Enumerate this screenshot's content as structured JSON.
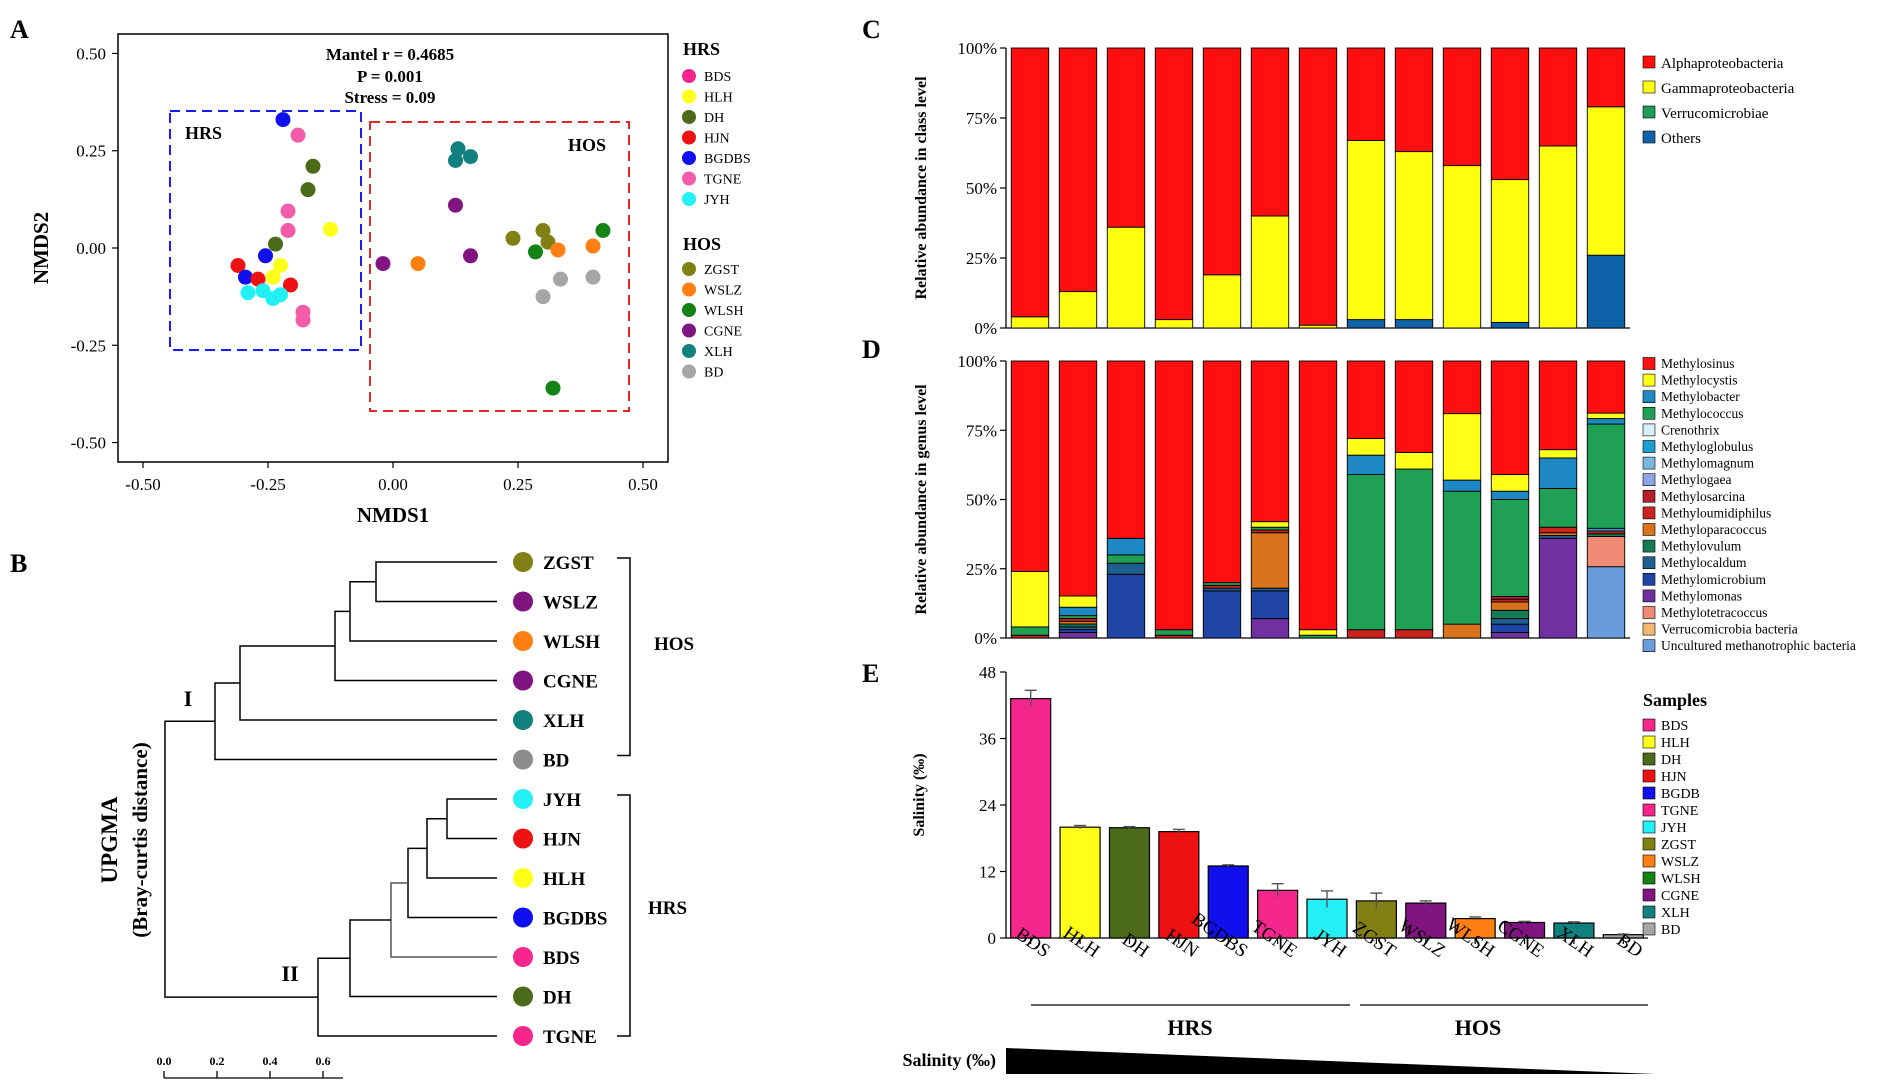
{
  "chart_data": [
    {
      "panel": "A",
      "type": "scatter",
      "xlabel": "NMDS1",
      "ylabel": "NMDS2",
      "xlim": [
        -0.55,
        0.55
      ],
      "ylim": [
        -0.55,
        0.55
      ],
      "xticks": [
        "-0.50",
        "-0.25",
        "0.00",
        "0.25",
        "0.50"
      ],
      "yticks": [
        "0.50",
        "0.25",
        "0.00",
        "-0.25",
        "-0.50"
      ],
      "annotation": [
        "Mantel r = 0.4685",
        "P = 0.001",
        "Stress = 0.09"
      ],
      "box_labels": {
        "hrs": "HRS",
        "hos": "HOS"
      },
      "legend": {
        "hrs_title": "HRS",
        "hos_title": "HOS",
        "hrs": [
          {
            "name": "BDS",
            "color": "#f7268c"
          },
          {
            "name": "HLH",
            "color": "#ffff1a"
          },
          {
            "name": "DH",
            "color": "#4b6b1a"
          },
          {
            "name": "HJN",
            "color": "#ee1111"
          },
          {
            "name": "BGDBS",
            "color": "#1010ee"
          },
          {
            "name": "TGNE",
            "color": "#f25ca8"
          },
          {
            "name": "JYH",
            "color": "#22f0f5"
          }
        ],
        "hos": [
          {
            "name": "ZGST",
            "color": "#808015"
          },
          {
            "name": "WSLZ",
            "color": "#ff7f12"
          },
          {
            "name": "WLSH",
            "color": "#148214"
          },
          {
            "name": "CGNE",
            "color": "#801480"
          },
          {
            "name": "XLH",
            "color": "#138080"
          },
          {
            "name": "BD",
            "color": "#a6a6a6"
          }
        ]
      },
      "points": [
        {
          "g": "BGDBS",
          "x": -0.22,
          "y": 0.33
        },
        {
          "g": "TGNE",
          "x": -0.19,
          "y": 0.29
        },
        {
          "g": "DH",
          "x": -0.16,
          "y": 0.21
        },
        {
          "g": "DH",
          "x": -0.17,
          "y": 0.15
        },
        {
          "g": "TGNE",
          "x": -0.21,
          "y": 0.095
        },
        {
          "g": "TGNE",
          "x": -0.21,
          "y": 0.045
        },
        {
          "g": "HLH",
          "x": -0.125,
          "y": 0.048
        },
        {
          "g": "DH",
          "x": -0.235,
          "y": 0.01
        },
        {
          "g": "BGDBS",
          "x": -0.255,
          "y": -0.02
        },
        {
          "g": "HJN",
          "x": -0.31,
          "y": -0.045
        },
        {
          "g": "HLH",
          "x": -0.225,
          "y": -0.045
        },
        {
          "g": "BGDBS",
          "x": -0.295,
          "y": -0.075
        },
        {
          "g": "HJN",
          "x": -0.27,
          "y": -0.08
        },
        {
          "g": "HLH",
          "x": -0.24,
          "y": -0.075
        },
        {
          "g": "HJN",
          "x": -0.205,
          "y": -0.095
        },
        {
          "g": "JYH",
          "x": -0.29,
          "y": -0.115
        },
        {
          "g": "JYH",
          "x": -0.26,
          "y": -0.11
        },
        {
          "g": "JYH",
          "x": -0.24,
          "y": -0.13
        },
        {
          "g": "JYH",
          "x": -0.225,
          "y": -0.12
        },
        {
          "g": "TGNE",
          "x": -0.18,
          "y": -0.165
        },
        {
          "g": "TGNE",
          "x": -0.18,
          "y": -0.185
        },
        {
          "g": "XLH",
          "x": 0.13,
          "y": 0.255
        },
        {
          "g": "XLH",
          "x": 0.125,
          "y": 0.225
        },
        {
          "g": "XLH",
          "x": 0.155,
          "y": 0.235
        },
        {
          "g": "CGNE",
          "x": 0.125,
          "y": 0.11
        },
        {
          "g": "CGNE",
          "x": -0.02,
          "y": -0.04
        },
        {
          "g": "WSLZ",
          "x": 0.05,
          "y": -0.04
        },
        {
          "g": "CGNE",
          "x": 0.155,
          "y": -0.02
        },
        {
          "g": "ZGST",
          "x": 0.24,
          "y": 0.025
        },
        {
          "g": "ZGST",
          "x": 0.3,
          "y": 0.045
        },
        {
          "g": "ZGST",
          "x": 0.31,
          "y": 0.015
        },
        {
          "g": "WLSH",
          "x": 0.285,
          "y": -0.01
        },
        {
          "g": "WSLZ",
          "x": 0.33,
          "y": -0.005
        },
        {
          "g": "WSLZ",
          "x": 0.4,
          "y": 0.005
        },
        {
          "g": "WLSH",
          "x": 0.42,
          "y": 0.045
        },
        {
          "g": "BD",
          "x": 0.335,
          "y": -0.08
        },
        {
          "g": "BD",
          "x": 0.4,
          "y": -0.075
        },
        {
          "g": "BD",
          "x": 0.3,
          "y": -0.125
        },
        {
          "g": "WLSH",
          "x": 0.32,
          "y": -0.36
        }
      ]
    },
    {
      "panel": "B",
      "type": "dendrogram",
      "title": "UPGMA",
      "subtitle": "(Bray-curtis distance)",
      "scale_ticks": [
        "0.0",
        "0.2",
        "0.4",
        "0.6"
      ],
      "cluster_labels": [
        "I",
        "II"
      ],
      "groups": [
        {
          "name": "HOS"
        },
        {
          "name": "HRS"
        }
      ],
      "leaves": [
        {
          "name": "ZGST",
          "color": "#808015"
        },
        {
          "name": "WSLZ",
          "color": "#801480"
        },
        {
          "name": "WLSH",
          "color": "#ff7f12"
        },
        {
          "name": "CGNE",
          "color": "#801480"
        },
        {
          "name": "XLH",
          "color": "#138080"
        },
        {
          "name": "BD",
          "color": "#8c8c8c"
        },
        {
          "name": "JYH",
          "color": "#22f0f5"
        },
        {
          "name": "HJN",
          "color": "#ee1111"
        },
        {
          "name": "HLH",
          "color": "#ffff1a"
        },
        {
          "name": "BGDBS",
          "color": "#1010ee"
        },
        {
          "name": "BDS",
          "color": "#f7268c"
        },
        {
          "name": "DH",
          "color": "#4b6b1a"
        },
        {
          "name": "TGNE",
          "color": "#f7268c"
        }
      ]
    },
    {
      "panel": "C",
      "type": "bar",
      "stacked": true,
      "ylabel": "Relative abundance in class level",
      "yticks": [
        "0%",
        "25%",
        "50%",
        "75%",
        "100%"
      ],
      "categories": [
        "BDS",
        "HLH",
        "DH",
        "HJN",
        "BGDBS",
        "TGNE",
        "JYH",
        "ZGST",
        "WSLZ",
        "WLSH",
        "CGNE",
        "XLH",
        "BD"
      ],
      "series": [
        {
          "name": "Others",
          "color": "#1062a8",
          "values": [
            0,
            0,
            0,
            0,
            0,
            0,
            0,
            3,
            3,
            0,
            2,
            0,
            26
          ]
        },
        {
          "name": "Verrucomicrobiae",
          "color": "#1f9d57",
          "values": [
            0,
            0,
            0,
            0,
            0,
            0,
            0,
            0,
            0,
            0,
            0,
            0,
            0
          ]
        },
        {
          "name": "Gammaproteobacteria",
          "color": "#ffff10",
          "values": [
            4,
            13,
            36,
            3,
            19,
            40,
            1,
            64,
            60,
            58,
            51,
            65,
            53
          ]
        },
        {
          "name": "Alphaproteobacteria",
          "color": "#ff0f0f",
          "values": [
            96,
            87,
            64,
            97,
            81,
            60,
            99,
            33,
            37,
            42,
            47,
            35,
            21
          ]
        }
      ],
      "legend_order": [
        "Alphaproteobacteria",
        "Gammaproteobacteria",
        "Verrucomicrobiae",
        "Others"
      ]
    },
    {
      "panel": "D",
      "type": "bar",
      "stacked": true,
      "ylabel": "Relative abundance in genus level",
      "yticks": [
        "0%",
        "25%",
        "50%",
        "75%",
        "100%"
      ],
      "categories": [
        "BDS",
        "HLH",
        "DH",
        "HJN",
        "BGDBS",
        "TGNE",
        "JYH",
        "ZGST",
        "WSLZ",
        "WLSH",
        "CGNE",
        "XLH",
        "BD"
      ],
      "series": [
        {
          "name": "Uncultured methanotrophic bacteria",
          "color": "#6a9cdc",
          "values": [
            0,
            0,
            0,
            0,
            0,
            0,
            0,
            0,
            0,
            0,
            0,
            0,
            26
          ]
        },
        {
          "name": "Verrucomicrobia bacteria",
          "color": "#f5b870",
          "values": [
            0,
            0,
            0,
            0,
            0,
            0,
            0,
            0,
            0,
            0,
            0,
            0,
            0
          ]
        },
        {
          "name": "Methylotetracoccus",
          "color": "#f08a75",
          "values": [
            0,
            0,
            0,
            0,
            0,
            0,
            0,
            0,
            0,
            0,
            0,
            0,
            11
          ]
        },
        {
          "name": "Methylomonas",
          "color": "#7030a0",
          "values": [
            0,
            2,
            0,
            0,
            0,
            7,
            0,
            0,
            0,
            0,
            2,
            36,
            0
          ]
        },
        {
          "name": "Methylomicrobium",
          "color": "#2145a5",
          "values": [
            0,
            1,
            23,
            0,
            17,
            10,
            0,
            0,
            0,
            0,
            3,
            0,
            0
          ]
        },
        {
          "name": "Methylocaldum",
          "color": "#1f5f8f",
          "values": [
            0,
            1,
            4,
            0,
            1,
            1,
            0,
            0,
            0,
            0,
            2,
            1,
            0
          ]
        },
        {
          "name": "Methylovulum",
          "color": "#177a57",
          "values": [
            0,
            1,
            0,
            0,
            0,
            0,
            0,
            0,
            0,
            0,
            3,
            0,
            1
          ]
        },
        {
          "name": "Methyloparacoccus",
          "color": "#d9731e",
          "values": [
            0,
            1,
            0,
            0,
            0,
            20,
            0,
            0,
            0,
            5,
            3,
            1,
            0
          ]
        },
        {
          "name": "Methyloumidiphilus",
          "color": "#c8241d",
          "values": [
            1,
            1,
            0,
            1,
            1,
            1,
            0,
            3,
            3,
            0,
            1,
            2,
            1
          ]
        },
        {
          "name": "Methylosarcina",
          "color": "#b51e2a",
          "values": [
            0,
            0,
            0,
            0,
            0,
            0,
            0,
            0,
            0,
            0,
            1,
            0,
            0
          ]
        },
        {
          "name": "Methylogaea",
          "color": "#8fa5e6",
          "values": [
            0,
            0,
            0,
            0,
            0,
            0,
            0,
            0,
            0,
            0,
            0,
            0,
            0
          ]
        },
        {
          "name": "Methylomagnum",
          "color": "#7ab7e0",
          "values": [
            0,
            0,
            0,
            0,
            0,
            0,
            0,
            0,
            0,
            0,
            0,
            0,
            0
          ]
        },
        {
          "name": "Methyloglobulus",
          "color": "#1a9fd1",
          "values": [
            0,
            0,
            0,
            0,
            0,
            0,
            0,
            0,
            0,
            0,
            0,
            0,
            1
          ]
        },
        {
          "name": "Crenothrix",
          "color": "#d8eef8",
          "values": [
            0,
            0,
            0,
            0,
            0,
            0,
            0,
            0,
            0,
            0,
            0,
            0,
            0
          ]
        },
        {
          "name": "Methylococcus",
          "color": "#1fa055",
          "values": [
            3,
            1,
            3,
            2,
            1,
            1,
            1,
            56,
            58,
            48,
            35,
            14,
            38
          ]
        },
        {
          "name": "Methylobacter",
          "color": "#1e88c4",
          "values": [
            0,
            3,
            6,
            0,
            0,
            0,
            0,
            7,
            0,
            4,
            3,
            11,
            2
          ]
        },
        {
          "name": "Methylocystis",
          "color": "#ffff1a",
          "values": [
            20,
            4,
            0,
            0,
            0,
            2,
            2,
            6,
            6,
            24,
            6,
            3,
            2
          ]
        },
        {
          "name": "Methylosinus",
          "color": "#ff0f0f",
          "values": [
            76,
            84,
            64,
            97,
            80,
            58,
            97,
            28,
            33,
            19,
            41,
            32,
            19
          ]
        }
      ],
      "legend_order": [
        "Methylosinus",
        "Methylocystis",
        "Methylobacter",
        "Methylococcus",
        "Crenothrix",
        "Methyloglobulus",
        "Methylomagnum",
        "Methylogaea",
        "Methylosarcina",
        "Methyloumidiphilus",
        "Methyloparacoccus",
        "Methylovulum",
        "Methylocaldum",
        "Methylomicrobium",
        "Methylomonas",
        "Methylotetracoccus",
        "Verrucomicrobia bacteria",
        "Uncultured methanotrophic bacteria"
      ]
    },
    {
      "panel": "E",
      "type": "bar",
      "ylabel": "Salinity (‰)",
      "ylim": [
        0,
        48
      ],
      "yticks": [
        "0",
        "12",
        "24",
        "36",
        "48"
      ],
      "categories": [
        "BDS",
        "HLH",
        "DH",
        "HJN",
        "BGDBS",
        "TGNE",
        "JYH",
        "ZGST",
        "WSLZ",
        "WLSH",
        "CGNE",
        "XLH",
        "BD"
      ],
      "values": [
        43.2,
        20.0,
        19.9,
        19.2,
        13.0,
        8.6,
        7.0,
        6.7,
        6.3,
        3.5,
        2.8,
        2.7,
        0.6
      ],
      "errors": [
        1.5,
        0.3,
        0.2,
        0.4,
        0.2,
        1.2,
        1.5,
        1.4,
        0.4,
        0.3,
        0.2,
        0.2,
        0.1
      ],
      "colors": [
        "#f7268c",
        "#ffff1a",
        "#4b6b1a",
        "#ee1111",
        "#1010ee",
        "#f7268c",
        "#22f0f5",
        "#808015",
        "#801480",
        "#ff7f12",
        "#801480",
        "#138080",
        "#a6a6a6"
      ],
      "legend_title": "Samples",
      "legend": [
        {
          "name": "BDS",
          "color": "#f7268c"
        },
        {
          "name": "HLH",
          "color": "#ffff1a"
        },
        {
          "name": "DH",
          "color": "#4b6b1a"
        },
        {
          "name": "HJN",
          "color": "#ee1111"
        },
        {
          "name": "BGDB",
          "color": "#1010ee"
        },
        {
          "name": "TGNE",
          "color": "#f7268c"
        },
        {
          "name": "JYH",
          "color": "#22f0f5"
        },
        {
          "name": "ZGST",
          "color": "#808015"
        },
        {
          "name": "WSLZ",
          "color": "#ff7f12"
        },
        {
          "name": "WLSH",
          "color": "#148214"
        },
        {
          "name": "CGNE",
          "color": "#801480"
        },
        {
          "name": "XLH",
          "color": "#138080"
        },
        {
          "name": "BD",
          "color": "#a6a6a6"
        }
      ],
      "group_labels": [
        "HRS",
        "HOS"
      ],
      "gradient_label": "Salinity (‰)"
    }
  ],
  "panel_labels": [
    "A",
    "B",
    "C",
    "D",
    "E"
  ]
}
